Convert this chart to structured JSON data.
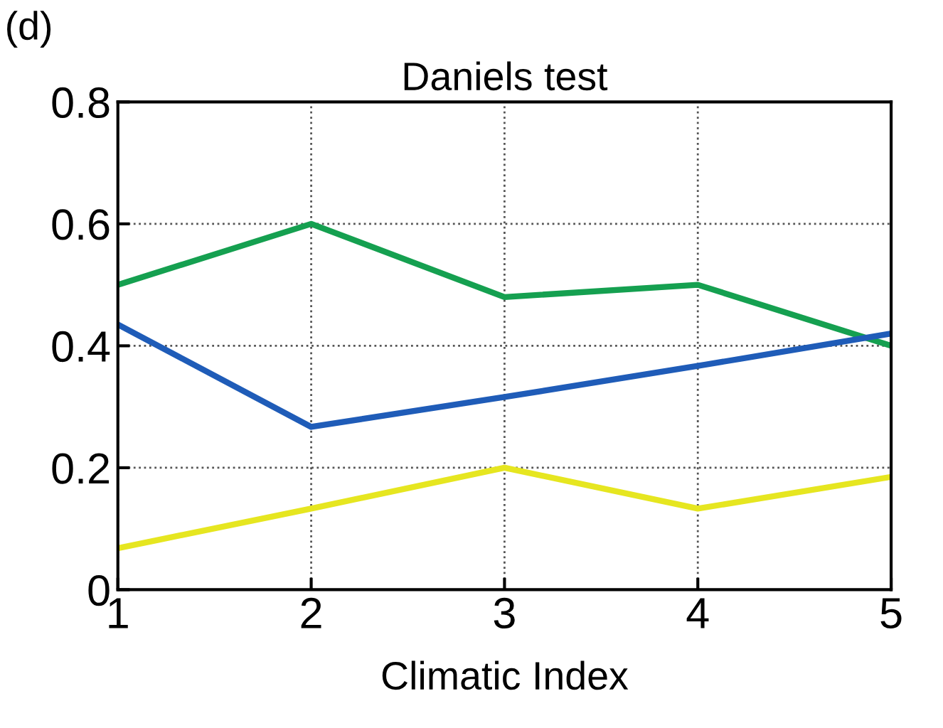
{
  "chart_data": {
    "type": "line",
    "title": "Daniels test",
    "xlabel": "Climatic Index",
    "annotations": [
      "(d)"
    ],
    "x": [
      1,
      2,
      3,
      4,
      5
    ],
    "series": [
      {
        "color": "#15a050",
        "values": [
          0.5,
          0.6,
          0.48,
          0.5,
          0.4
        ]
      },
      {
        "color": "#1f5cb8",
        "values": [
          0.435,
          0.267,
          0.316,
          0.367,
          0.42
        ]
      },
      {
        "color": "#e6e620",
        "values": [
          0.068,
          0.133,
          0.2,
          0.133,
          0.185
        ]
      }
    ],
    "xlim": [
      1,
      5
    ],
    "xticks": [
      1,
      2,
      3,
      4,
      5
    ],
    "ylim": [
      0,
      0.8
    ],
    "yticks": [
      0,
      0.2,
      0.4,
      0.6,
      0.8
    ],
    "grid": true,
    "line_style": "solid",
    "marker": "none"
  }
}
